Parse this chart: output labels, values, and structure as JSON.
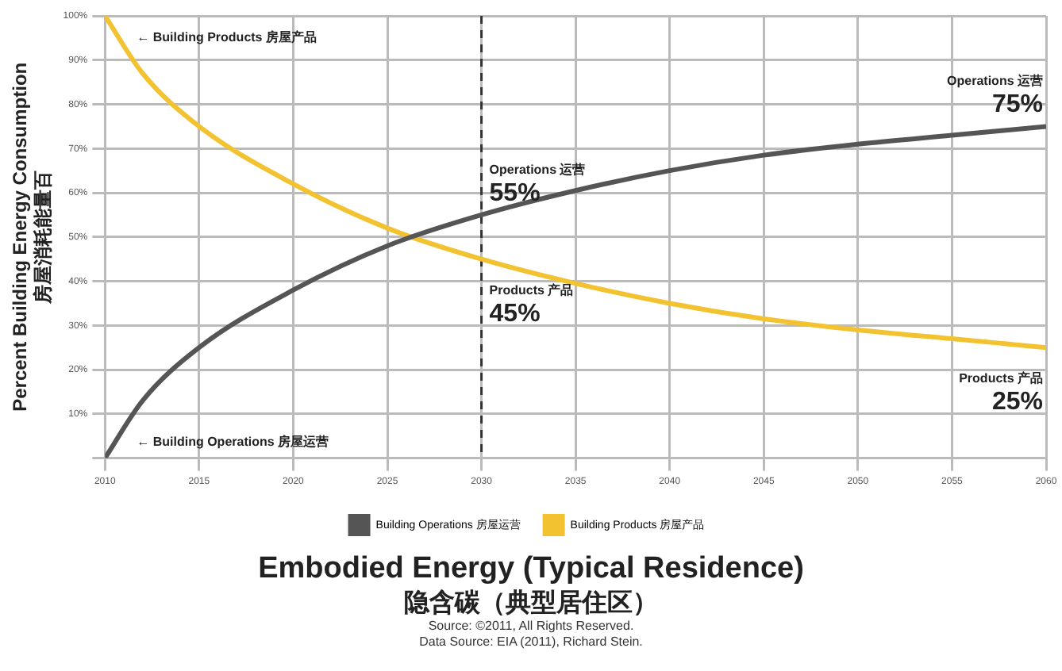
{
  "chart_data": {
    "type": "line",
    "title": "Embodied Energy (Typical Residence)",
    "subtitle": "隐含碳（典型居住区）",
    "ylabel": "Percent Building Energy Consumption\n房屋消耗能量百",
    "x": [
      2010,
      2012,
      2015,
      2020,
      2025,
      2030,
      2035,
      2040,
      2045,
      2050,
      2055,
      2060
    ],
    "series": [
      {
        "name": "Building Operations 房屋运营",
        "color": "#555555",
        "values": [
          0,
          13,
          25,
          38,
          48,
          55,
          60.5,
          65,
          68.5,
          71,
          73,
          75
        ]
      },
      {
        "name": "Building Products 房屋产品",
        "color": "#f2c230",
        "values": [
          100,
          87,
          75,
          62,
          52,
          45,
          39.5,
          35,
          31.5,
          29,
          27,
          25
        ]
      }
    ],
    "xlim": [
      2010,
      2060
    ],
    "xticks": [
      2010,
      2015,
      2020,
      2025,
      2030,
      2035,
      2040,
      2045,
      2050,
      2055,
      2060
    ],
    "ylim": [
      0,
      100
    ],
    "yticks": [
      {
        "value": 0,
        "label": null
      },
      {
        "value": 10,
        "label": "10%"
      },
      {
        "value": 20,
        "label": "20%"
      },
      {
        "value": 30,
        "label": "30%"
      },
      {
        "value": 40,
        "label": "40%"
      },
      {
        "value": 50,
        "label": "50%"
      },
      {
        "value": 60,
        "label": "60%"
      },
      {
        "value": 70,
        "label": "70%"
      },
      {
        "value": 80,
        "label": "80%"
      },
      {
        "value": 90,
        "label": "90%"
      },
      {
        "value": 100,
        "label": "100%"
      }
    ],
    "ref_lines": [
      {
        "axis": "x",
        "value": 2030,
        "line_style": "dashed",
        "color": "#333333"
      }
    ],
    "annotations": [
      {
        "text": "← Building Products 房屋产品",
        "x": 2010,
        "y": 100
      },
      {
        "text": "← Building Operations 房屋运营",
        "x": 2010,
        "y": 0
      },
      {
        "text": "Operations 运营 55%",
        "x": 2030,
        "y": 55
      },
      {
        "text": "Products 产品 45%",
        "x": 2030,
        "y": 45
      },
      {
        "text": "Operations 运营 75%",
        "x": 2060,
        "y": 75
      },
      {
        "text": "Products 产品 25%",
        "x": 2060,
        "y": 25
      },
      "Source: ©2011, All Rights Reserved.",
      "Data Source: EIA (2011), Richard Stein."
    ],
    "grid": true,
    "legend": "bottom",
    "marker": "none",
    "line_style": "solid"
  }
}
